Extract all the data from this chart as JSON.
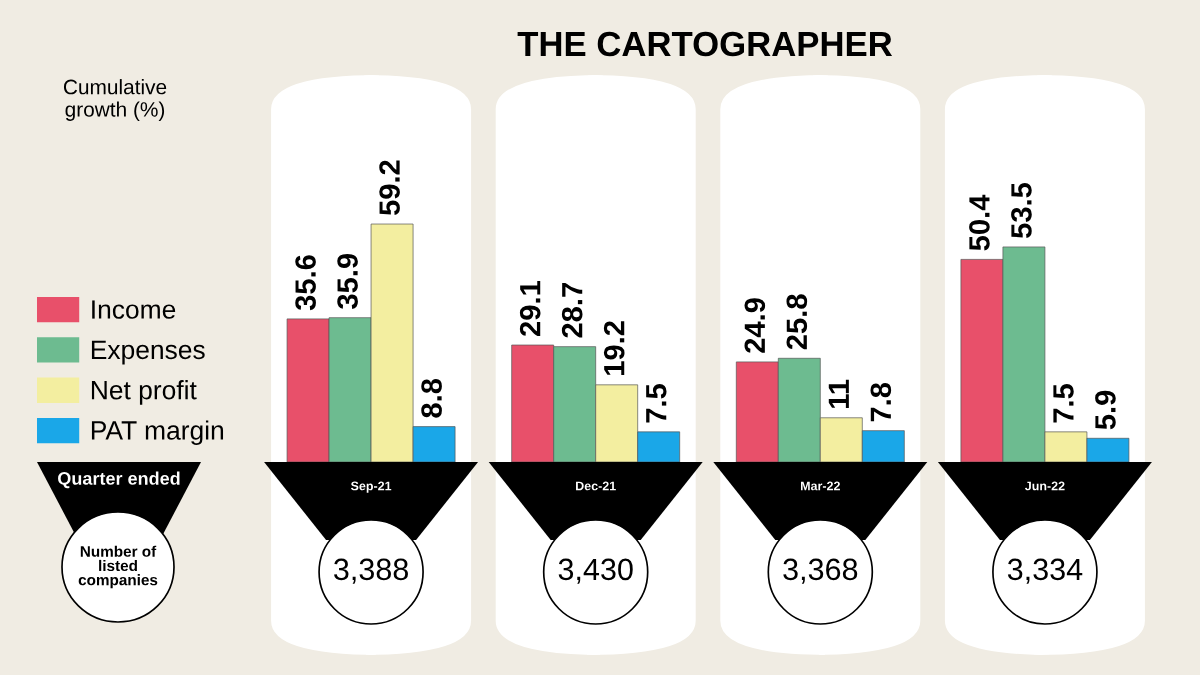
{
  "chart_data": {
    "type": "bar",
    "title": "THE CARTOGRAPHER",
    "categories": [
      "Sep-21",
      "Dec-21",
      "Mar-22",
      "Jun-22"
    ],
    "series": [
      {
        "name": "Income",
        "color": "#e8506a",
        "values": [
          35.6,
          29.1,
          24.9,
          50.4
        ]
      },
      {
        "name": "Expenses",
        "color": "#6dbb90",
        "values": [
          35.9,
          28.7,
          25.8,
          53.5
        ]
      },
      {
        "name": "Net profit",
        "color": "#f3eea0",
        "values": [
          59.2,
          19.2,
          11,
          7.5
        ]
      },
      {
        "name": "PAT margin",
        "color": "#1aa7e8",
        "values": [
          8.8,
          7.5,
          7.8,
          5.9
        ]
      }
    ],
    "data_labels": true,
    "legend": "left",
    "annotations": [
      "Cumulative growth (%)",
      "Quarter ended",
      "Number of listed companies",
      "3,388",
      "3,430",
      "3,368",
      "3,334"
    ]
  }
}
